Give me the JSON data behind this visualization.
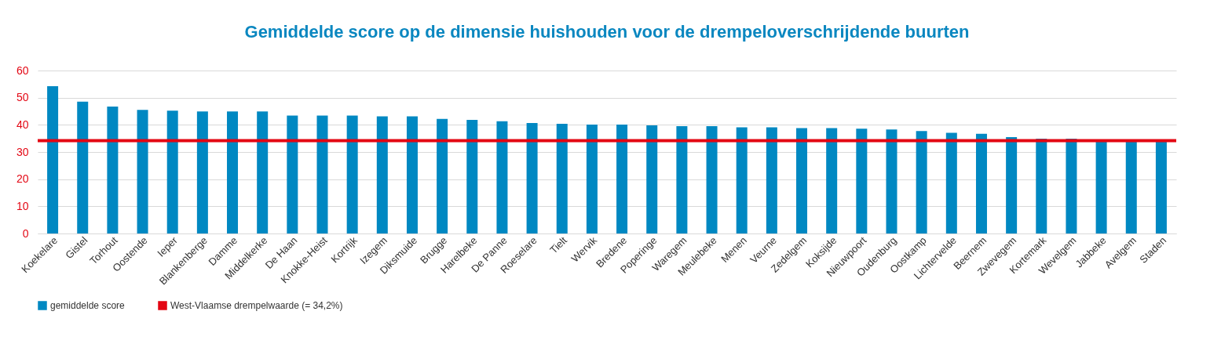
{
  "chart_data": {
    "type": "bar",
    "title": "Gemiddelde score op de dimensie huishouden voor de drempeloverschrijdende buurten",
    "categories": [
      "Koekelare",
      "Gistel",
      "Torhout",
      "Oostende",
      "Ieper",
      "Blankenberge",
      "Damme",
      "Middelkerke",
      "De Haan",
      "Knokke-Heist",
      "Kortrijk",
      "Izegem",
      "Diksmuide",
      "Brugge",
      "Harelbeke",
      "De Panne",
      "Roeselare",
      "Tielt",
      "Wervik",
      "Bredene",
      "Poperinge",
      "Waregem",
      "Meulebeke",
      "Menen",
      "Veurne",
      "Zedelgem",
      "Koksijde",
      "Nieuwpoort",
      "Oudenburg",
      "Oostkamp",
      "Lichtervelde",
      "Beernem",
      "Zwevegem",
      "Kortemark",
      "Wevelgem",
      "Jabbeke",
      "Avelgem",
      "Staden"
    ],
    "series": [
      {
        "name": "gemiddelde score",
        "color": "#0088c2",
        "values": [
          54.2,
          48.5,
          46.7,
          45.5,
          45.2,
          44.9,
          44.9,
          44.9,
          43.4,
          43.4,
          43.4,
          43.1,
          43.1,
          42.2,
          41.8,
          41.3,
          40.7,
          40.4,
          40.1,
          40.1,
          39.8,
          39.5,
          39.5,
          39.1,
          39.1,
          38.8,
          38.8,
          38.6,
          38.3,
          37.7,
          37.1,
          36.7,
          35.5,
          34.9,
          34.9,
          34.3,
          34.3,
          34.0
        ]
      }
    ],
    "ylim": [
      0,
      60
    ],
    "yticks": [
      0,
      10,
      20,
      30,
      40,
      50,
      60
    ],
    "grid": "y",
    "legend": "bottom",
    "ref_lines": [
      {
        "axis": "y",
        "value": 34.2,
        "label": "West-Vlaamse drempelwaarde (= 34,2%)",
        "color": "#e30613"
      }
    ]
  }
}
